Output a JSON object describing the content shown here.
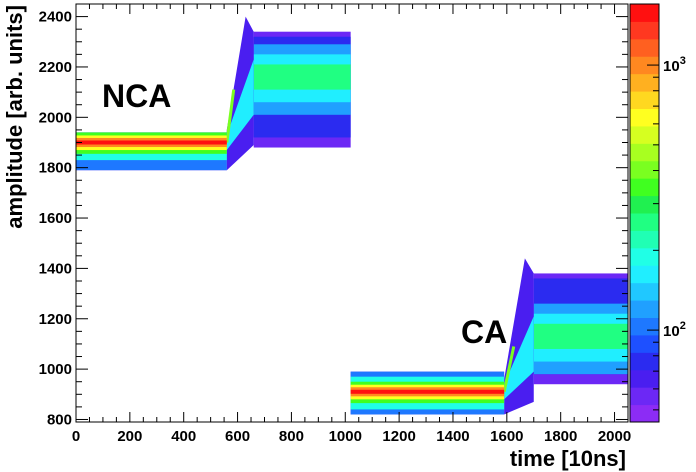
{
  "chart_data": {
    "type": "heatmap",
    "title": "",
    "xlabel": "time [10ns]",
    "ylabel": "amplitude [arb. units]",
    "xlim": [
      0,
      2050
    ],
    "ylim": [
      790,
      2450
    ],
    "x_ticks": [
      "0",
      "200",
      "400",
      "600",
      "800",
      "1000",
      "1200",
      "1400",
      "1600",
      "1800",
      "2000"
    ],
    "y_ticks": [
      "800",
      "1000",
      "1200",
      "1400",
      "1600",
      "1800",
      "2000",
      "2200",
      "2400"
    ],
    "colorbar": {
      "scale": "log",
      "range": [
        45,
        1700
      ],
      "tick_labels": [
        {
          "base": "10",
          "exp": "2",
          "value": 100
        },
        {
          "base": "10",
          "exp": "3",
          "value": 1000
        }
      ],
      "colors": [
        "#8c2cf5",
        "#6c28f5",
        "#4a1ef0",
        "#2b2bf0",
        "#1e50ff",
        "#1e78ff",
        "#20a0ff",
        "#20c8ff",
        "#20eeff",
        "#20ffe6",
        "#20ffb4",
        "#20ff82",
        "#20f050",
        "#40ff20",
        "#7aff20",
        "#a8ff20",
        "#d6ff20",
        "#ffff20",
        "#ffd820",
        "#ffb020",
        "#ff8820",
        "#ff6020",
        "#ff3820",
        "#ff1010"
      ]
    },
    "regions": [
      {
        "name": "NCA",
        "segments": [
          {
            "x_start": 0,
            "x_end": 560,
            "baseline": 1900,
            "core_halfwidth": 20,
            "spread_low": 1790,
            "spread_high": 1940
          },
          {
            "x_start": 560,
            "x_end": 660,
            "rise_from": 1900,
            "rise_to": 2150
          },
          {
            "x_start": 660,
            "x_end": 1020,
            "baseline": 2150,
            "spread_low": 1880,
            "spread_high": 2340
          }
        ]
      },
      {
        "name": "CA",
        "segments": [
          {
            "x_start": 1020,
            "x_end": 1590,
            "baseline": 910,
            "core_halfwidth": 20,
            "spread_low": 820,
            "spread_high": 990
          },
          {
            "x_start": 1590,
            "x_end": 1700,
            "rise_from": 910,
            "rise_to": 1130
          },
          {
            "x_start": 1700,
            "x_end": 2050,
            "baseline": 1120,
            "spread_low": 940,
            "spread_high": 1380
          }
        ]
      }
    ]
  },
  "annotations": {
    "nca": "NCA",
    "ca": "CA"
  }
}
